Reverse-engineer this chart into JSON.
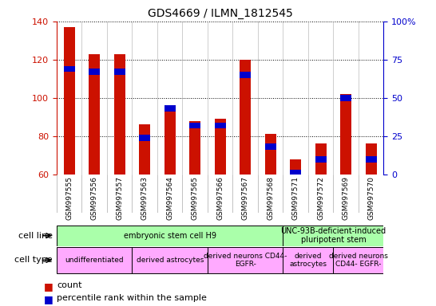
{
  "title": "GDS4669 / ILMN_1812545",
  "samples": [
    "GSM997555",
    "GSM997556",
    "GSM997557",
    "GSM997563",
    "GSM997564",
    "GSM997565",
    "GSM997566",
    "GSM997567",
    "GSM997568",
    "GSM997571",
    "GSM997572",
    "GSM997569",
    "GSM997570"
  ],
  "counts": [
    137,
    123,
    123,
    86,
    93,
    88,
    89,
    120,
    81,
    68,
    76,
    102,
    76
  ],
  "percentiles": [
    69,
    67,
    67,
    24,
    43,
    32,
    32,
    65,
    18,
    1,
    10,
    50,
    10
  ],
  "ylim_left": [
    60,
    140
  ],
  "ylim_right": [
    0,
    100
  ],
  "yticks_left": [
    60,
    80,
    100,
    120,
    140
  ],
  "yticks_right": [
    0,
    25,
    50,
    75,
    100
  ],
  "ytick_labels_right": [
    "0",
    "25",
    "50",
    "75",
    "100%"
  ],
  "cell_line_groups": [
    {
      "label": "embryonic stem cell H9",
      "start": 0,
      "end": 8,
      "color": "#aaffaa"
    },
    {
      "label": "UNC-93B-deficient-induced\npluripotent stem",
      "start": 9,
      "end": 12,
      "color": "#aaffaa"
    }
  ],
  "cell_type_groups": [
    {
      "label": "undifferentiated",
      "start": 0,
      "end": 2,
      "color": "#ffaaff"
    },
    {
      "label": "derived astrocytes",
      "start": 3,
      "end": 5,
      "color": "#ffaaff"
    },
    {
      "label": "derived neurons CD44-\nEGFR-",
      "start": 6,
      "end": 8,
      "color": "#ffaaff"
    },
    {
      "label": "derived\nastrocytes",
      "start": 9,
      "end": 10,
      "color": "#ffaaff"
    },
    {
      "label": "derived neurons\nCD44- EGFR-",
      "start": 11,
      "end": 12,
      "color": "#ffaaff"
    }
  ],
  "bar_color": "#cc1100",
  "percentile_color": "#0000cc",
  "background_color": "#ffffff",
  "left_axis_color": "#cc1100",
  "right_axis_color": "#0000cc",
  "gray_bg": "#d8d8d8"
}
